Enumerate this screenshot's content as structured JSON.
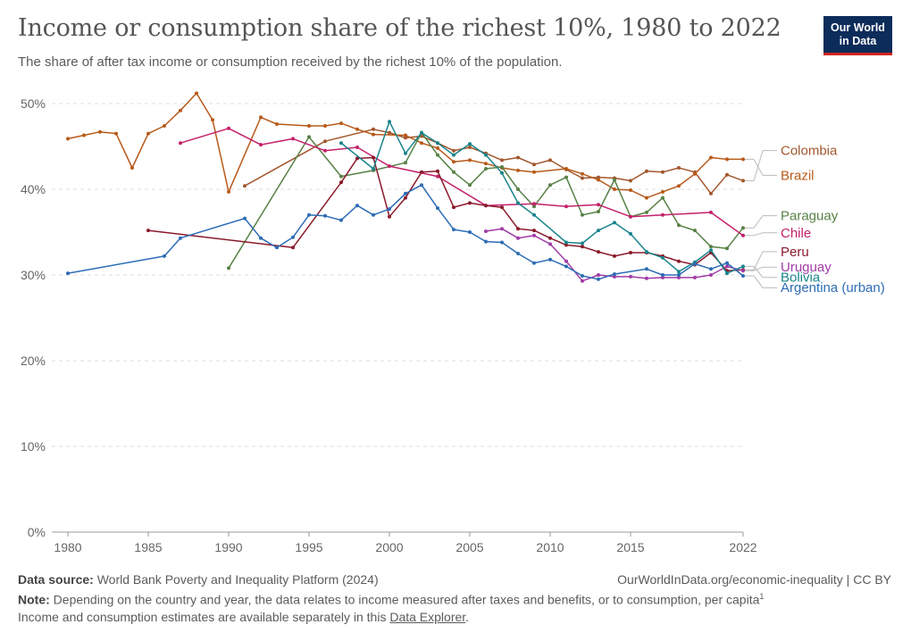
{
  "header": {
    "title": "Income or consumption share of the richest 10%, 1980 to 2022",
    "subtitle": "The share of after tax income or consumption received by the richest 10% of the population.",
    "logo_line1": "Our World",
    "logo_line2": "in Data"
  },
  "footer": {
    "source_label": "Data source:",
    "source_text": "World Bank Poverty and Inequality Platform (2024)",
    "right_text": "OurWorldInData.org/economic-inequality | CC BY",
    "note_label": "Note:",
    "note_text": "Depending on the country and year, the data relates to income measured after taxes and benefits, or to consumption, per capita",
    "note_sup": "1",
    "note_line2_prefix": "Income and consumption estimates are available separately in this ",
    "note_link": "Data Explorer",
    "note_line2_suffix": "."
  },
  "chart_data": {
    "type": "line",
    "title": "Income or consumption share of the richest 10%, 1980 to 2022",
    "xlim": [
      1979,
      2022
    ],
    "ylim": [
      0,
      50
    ],
    "x_ticks": [
      "1980",
      "1985",
      "1990",
      "1995",
      "2000",
      "2005",
      "2010",
      "2015",
      "2022"
    ],
    "y_ticks": [
      "0%",
      "10%",
      "20%",
      "30%",
      "40%",
      "50%"
    ],
    "y_tick_values": [
      0,
      10,
      20,
      30,
      40,
      50
    ],
    "grid": "horizontal dashed",
    "legend": "right-end labels",
    "series": [
      {
        "name": "Colombia",
        "color": "#a2572d",
        "label_value": 44.0,
        "x": [
          1991,
          1996,
          1999,
          2000,
          2001,
          2002,
          2003,
          2004,
          2005,
          2006,
          2007,
          2008,
          2009,
          2010,
          2011,
          2012,
          2013,
          2014,
          2015,
          2016,
          2017,
          2018,
          2019,
          2020,
          2021,
          2022
        ],
        "y": [
          40.4,
          45.6,
          47.0,
          46.6,
          46.0,
          46.2,
          45.4,
          44.5,
          44.9,
          44.2,
          43.4,
          43.7,
          42.9,
          43.4,
          42.3,
          41.3,
          41.4,
          41.3,
          41.0,
          42.1,
          42.0,
          42.5,
          42.0,
          39.5,
          41.7,
          41.0
        ]
      },
      {
        "name": "Brazil",
        "color": "#b85a1a",
        "label_value": 41.1,
        "x": [
          1980,
          1981,
          1982,
          1983,
          1984,
          1985,
          1986,
          1987,
          1988,
          1989,
          1990,
          1992,
          1993,
          1995,
          1996,
          1997,
          1998,
          1999,
          2001,
          2002,
          2003,
          2004,
          2005,
          2006,
          2007,
          2008,
          2009,
          2011,
          2012,
          2013,
          2014,
          2015,
          2016,
          2017,
          2018,
          2019,
          2020,
          2021,
          2022
        ],
        "y": [
          45.9,
          46.3,
          46.7,
          46.5,
          42.5,
          46.5,
          47.4,
          49.2,
          51.2,
          48.1,
          39.7,
          48.4,
          47.6,
          47.4,
          47.4,
          47.7,
          47.0,
          46.4,
          46.3,
          45.4,
          44.8,
          43.2,
          43.4,
          43.0,
          42.5,
          42.2,
          42.0,
          42.4,
          41.8,
          41.1,
          40.0,
          39.9,
          39.0,
          39.7,
          40.4,
          41.8,
          43.7,
          43.5,
          43.5
        ]
      },
      {
        "name": "Paraguay",
        "color": "#578145",
        "label_value": 36.4,
        "x": [
          1990,
          1995,
          1997,
          1999,
          2001,
          2002,
          2003,
          2004,
          2005,
          2006,
          2007,
          2008,
          2009,
          2010,
          2011,
          2012,
          2013,
          2014,
          2015,
          2016,
          2017,
          2018,
          2019,
          2020,
          2021,
          2022
        ],
        "y": [
          30.8,
          46.1,
          41.5,
          42.2,
          43.1,
          46.6,
          44.0,
          42.0,
          40.5,
          42.4,
          42.6,
          40.0,
          38.0,
          40.5,
          41.4,
          37.0,
          37.4,
          41.1,
          36.8,
          37.3,
          39.0,
          35.8,
          35.2,
          33.3,
          33.1,
          35.5
        ]
      },
      {
        "name": "Chile",
        "color": "#c4206a",
        "label_value": 34.4,
        "x": [
          1987,
          1990,
          1992,
          1994,
          1996,
          1998,
          2000,
          2003,
          2006,
          2009,
          2011,
          2013,
          2015,
          2017,
          2020,
          2022
        ],
        "y": [
          45.4,
          47.1,
          45.2,
          45.9,
          44.5,
          44.9,
          42.7,
          41.5,
          38.1,
          38.3,
          38.0,
          38.2,
          36.8,
          37.0,
          37.3,
          34.6
        ]
      },
      {
        "name": "Peru",
        "color": "#8b1a2b",
        "label_value": 32.2,
        "x": [
          1985,
          1994,
          1997,
          1998,
          1999,
          2000,
          2001,
          2002,
          2003,
          2004,
          2005,
          2006,
          2007,
          2008,
          2009,
          2010,
          2011,
          2012,
          2013,
          2014,
          2015,
          2016,
          2017,
          2018,
          2019,
          2020,
          2021,
          2022
        ],
        "y": [
          35.2,
          33.2,
          40.8,
          43.6,
          43.7,
          36.8,
          39.0,
          42.0,
          42.1,
          37.9,
          38.4,
          38.1,
          37.9,
          35.4,
          35.2,
          34.3,
          33.5,
          33.3,
          32.7,
          32.2,
          32.6,
          32.6,
          32.2,
          31.6,
          31.2,
          32.6,
          30.5,
          30.6
        ]
      },
      {
        "name": "Uruguay",
        "color": "#a13ba6",
        "label_value": 30.4,
        "x": [
          2006,
          2007,
          2008,
          2009,
          2010,
          2011,
          2012,
          2013,
          2014,
          2015,
          2016,
          2017,
          2018,
          2019,
          2020,
          2021,
          2022
        ],
        "y": [
          35.1,
          35.4,
          34.3,
          34.6,
          33.6,
          31.6,
          29.3,
          30.0,
          29.8,
          29.8,
          29.6,
          29.7,
          29.7,
          29.7,
          30.0,
          31.0,
          30.5
        ]
      },
      {
        "name": "Bolivia",
        "color": "#19848c",
        "label_value": 29.2,
        "x": [
          1997,
          1999,
          2000,
          2001,
          2002,
          2003,
          2004,
          2005,
          2006,
          2007,
          2008,
          2009,
          2011,
          2012,
          2013,
          2014,
          2015,
          2016,
          2017,
          2018,
          2019,
          2020,
          2021,
          2022
        ],
        "y": [
          45.4,
          42.4,
          47.9,
          44.2,
          46.6,
          45.4,
          44.0,
          45.3,
          44.0,
          41.9,
          38.4,
          37.0,
          33.8,
          33.7,
          35.2,
          36.1,
          34.8,
          32.7,
          32.0,
          30.4,
          31.5,
          32.9,
          30.2,
          31.0
        ]
      },
      {
        "name": "Argentina (urban)",
        "color": "#2d6cb5",
        "label_value": 28.0,
        "x": [
          1980,
          1986,
          1987,
          1991,
          1992,
          1993,
          1994,
          1995,
          1996,
          1997,
          1998,
          1999,
          2000,
          2001,
          2002,
          2003,
          2004,
          2005,
          2006,
          2007,
          2008,
          2009,
          2010,
          2011,
          2012,
          2013,
          2014,
          2016,
          2017,
          2018,
          2019,
          2020,
          2021,
          2022
        ],
        "y": [
          30.2,
          32.2,
          34.3,
          36.6,
          34.3,
          33.2,
          34.4,
          37.0,
          36.9,
          36.4,
          38.1,
          37.0,
          37.7,
          39.5,
          40.5,
          37.8,
          35.3,
          35.0,
          33.9,
          33.8,
          32.5,
          31.4,
          31.8,
          31.0,
          29.9,
          29.5,
          30.1,
          30.7,
          30.0,
          30.0,
          31.3,
          30.7,
          31.4,
          29.9
        ]
      }
    ]
  }
}
